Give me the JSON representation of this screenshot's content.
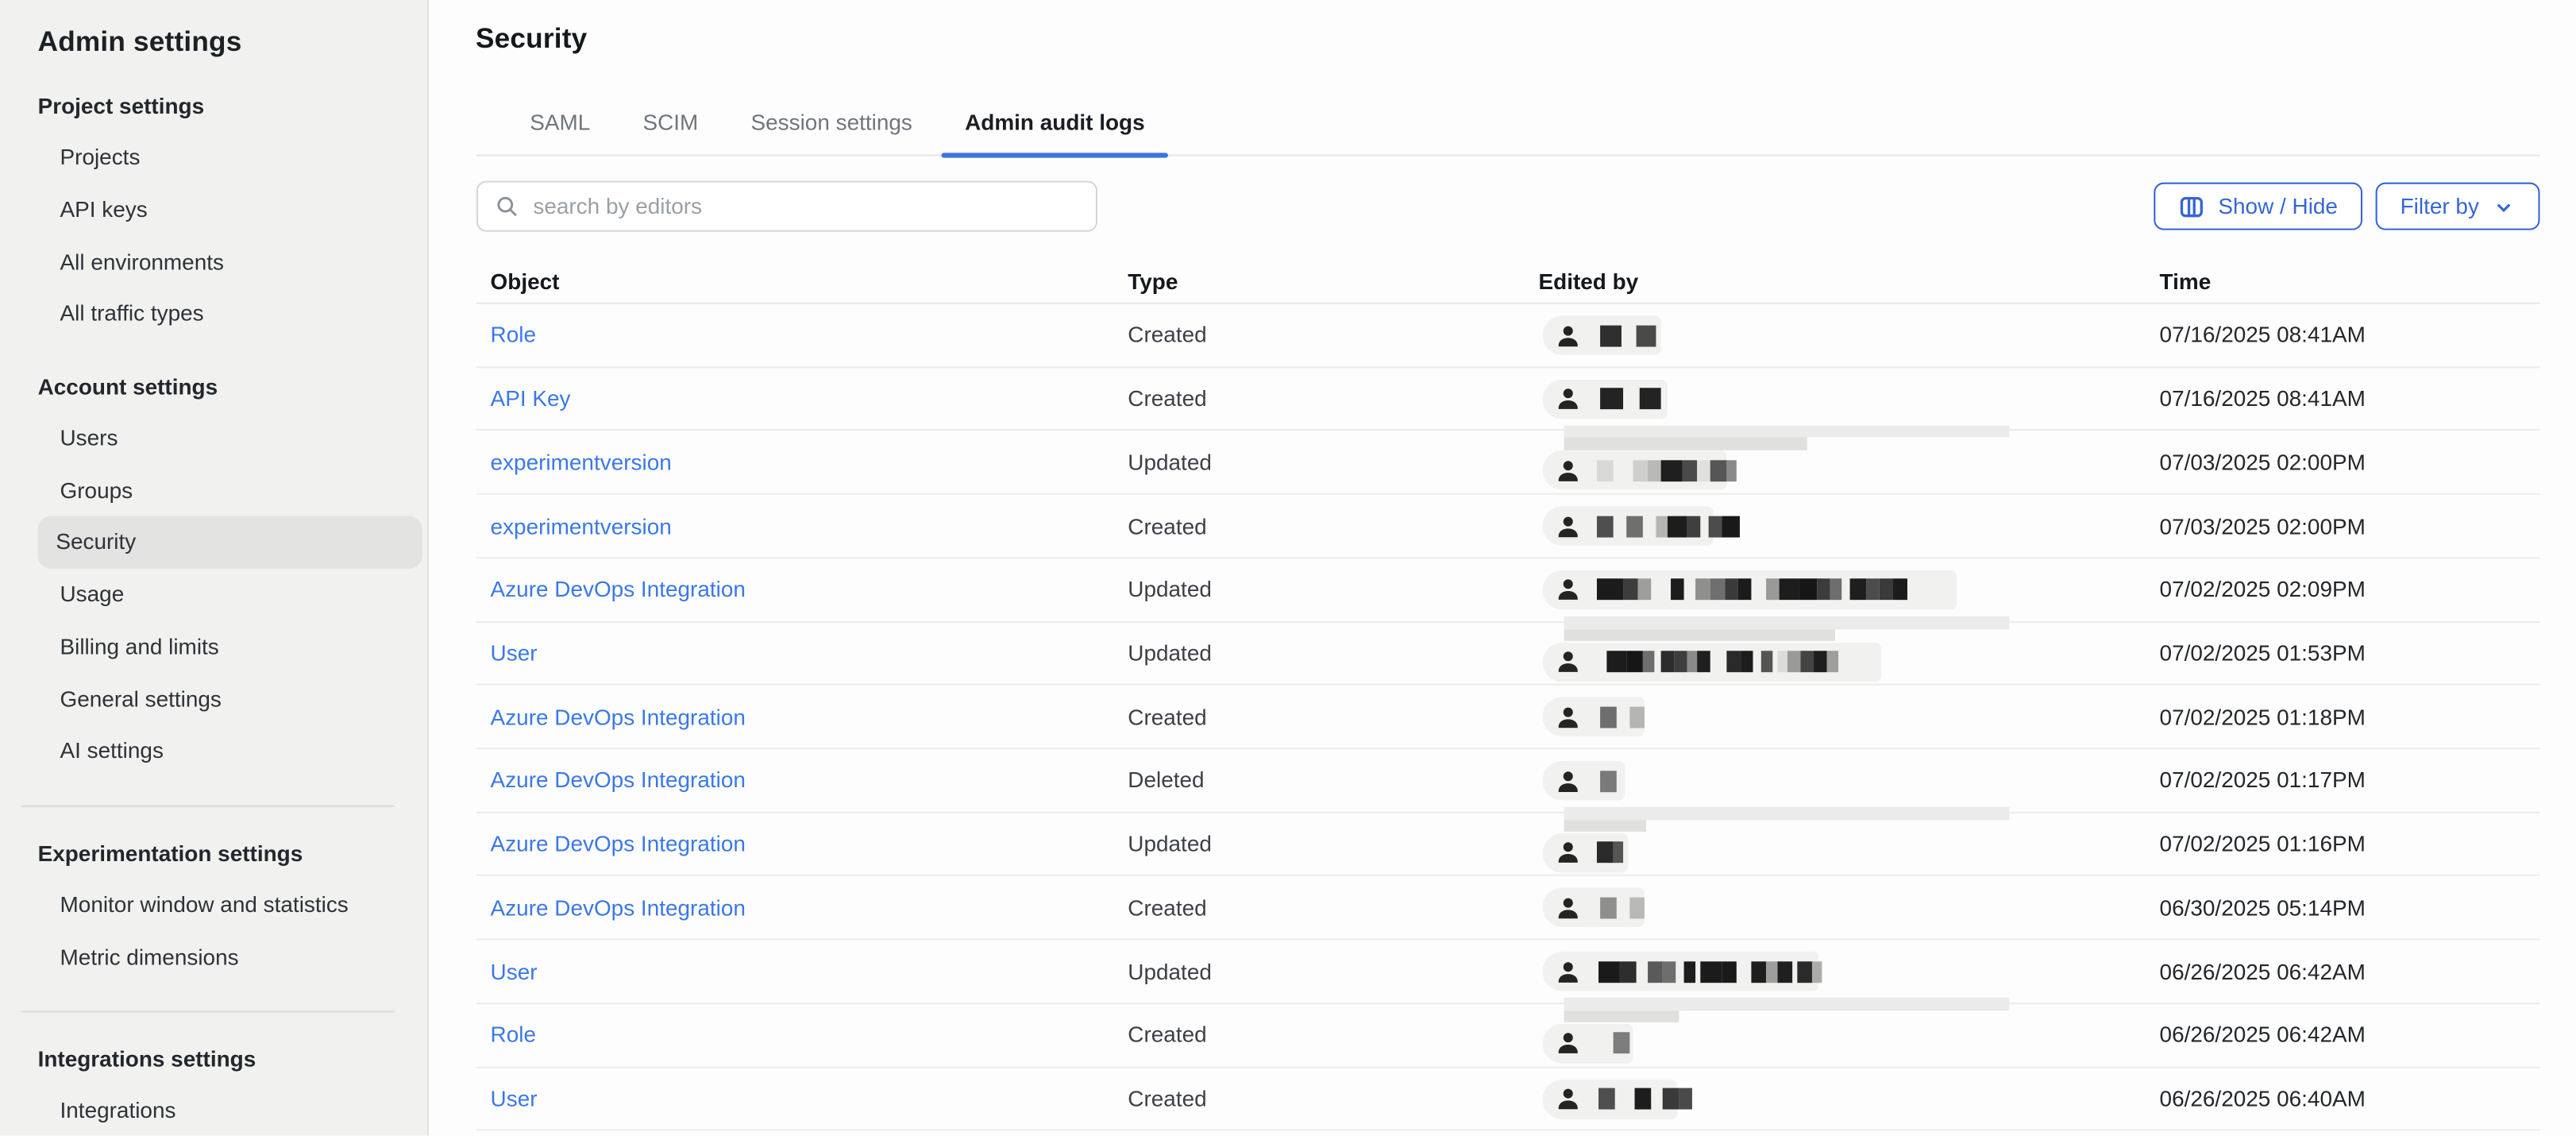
{
  "colors": {
    "accent": "#3566d6",
    "link": "#3b78e8",
    "tab_underline": "#3d72de",
    "sidebar_bg": "#f1f1ef",
    "sidebar_selected": "#e3e3e1",
    "main_bg": "#fdfdfd"
  },
  "sidebar": {
    "title": "Admin settings",
    "sections": [
      {
        "heading": "Project settings",
        "divider_above": false,
        "items": [
          {
            "label": "Projects"
          },
          {
            "label": "API keys"
          },
          {
            "label": "All environments"
          },
          {
            "label": "All traffic types"
          }
        ]
      },
      {
        "heading": "Account settings",
        "divider_above": false,
        "items": [
          {
            "label": "Users"
          },
          {
            "label": "Groups"
          },
          {
            "label": "Security",
            "selected": true
          },
          {
            "label": "Usage"
          },
          {
            "label": "Billing and limits"
          },
          {
            "label": "General settings"
          },
          {
            "label": "AI settings"
          }
        ]
      },
      {
        "heading": "Experimentation settings",
        "divider_above": true,
        "items": [
          {
            "label": "Monitor window and statistics"
          },
          {
            "label": "Metric dimensions"
          }
        ]
      },
      {
        "heading": "Integrations settings",
        "divider_above": true,
        "items": [
          {
            "label": "Integrations"
          }
        ]
      }
    ]
  },
  "main": {
    "title": "Security",
    "tabs": [
      {
        "label": "SAML",
        "active": false
      },
      {
        "label": "SCIM",
        "active": false
      },
      {
        "label": "Session settings",
        "active": false
      },
      {
        "label": "Admin audit logs",
        "active": true
      }
    ],
    "search": {
      "placeholder": "search by editors",
      "icon": "search-icon"
    },
    "toolbar": {
      "show_hide_label": "Show / Hide",
      "show_hide_icon": "columns-icon",
      "filter_by_label": "Filter by",
      "filter_by_icon": "chevron-down-icon"
    },
    "table": {
      "columns": [
        "Object",
        "Type",
        "Edited by",
        "Time"
      ],
      "editor_icon": "person-icon",
      "rows": [
        {
          "object": "Role",
          "type": "Created",
          "time": "07/16/2025 08:41AM",
          "redaction": {
            "band_above": false,
            "pill_width": 72,
            "blocks": [
              [
                5,
                ""
              ],
              [
                13,
                "#2f2f2f"
              ],
              [
                9,
                ""
              ],
              [
                12,
                "#4a4a4a"
              ]
            ]
          }
        },
        {
          "object": "API Key",
          "type": "Created",
          "time": "07/16/2025 08:41AM",
          "redaction": {
            "band_above": false,
            "pill_width": 76,
            "blocks": [
              [
                5,
                ""
              ],
              [
                14,
                "#232323"
              ],
              [
                10,
                ""
              ],
              [
                13,
                "#232323"
              ]
            ]
          }
        },
        {
          "object": "experimentversion",
          "type": "Updated",
          "time": "07/03/2025 02:00PM",
          "redaction": {
            "band_above": true,
            "band2_width": 148,
            "pill_width": 112,
            "blocks": [
              [
                3,
                ""
              ],
              [
                10,
                "#d9d9d7"
              ],
              [
                12,
                ""
              ],
              [
                9,
                "#cfcfcd"
              ],
              [
                8,
                "#b9b9b7"
              ],
              [
                13,
                "#1f1f1f"
              ],
              [
                9,
                "#4a4a4a"
              ],
              [
                8,
                "#e0e0de"
              ],
              [
                10,
                "#565656"
              ],
              [
                6,
                "#8a8a8a"
              ]
            ]
          }
        },
        {
          "object": "experimentversion",
          "type": "Created",
          "time": "07/03/2025 02:00PM",
          "redaction": {
            "band_above": false,
            "pill_width": 104,
            "blocks": [
              [
                3,
                ""
              ],
              [
                10,
                "#4f4f4f"
              ],
              [
                8,
                ""
              ],
              [
                10,
                "#6f6f6f"
              ],
              [
                8,
                ""
              ],
              [
                7,
                "#b5b5b3"
              ],
              [
                12,
                "#1d1d1d"
              ],
              [
                8,
                "#3f3f3f"
              ],
              [
                5,
                ""
              ],
              [
                8,
                "#4c4c4c"
              ],
              [
                11,
                "#191919"
              ]
            ]
          }
        },
        {
          "object": "Azure DevOps Integration",
          "type": "Updated",
          "time": "07/02/2025 02:09PM",
          "redaction": {
            "band_above": false,
            "pill_width": 252,
            "blocks": [
              [
                3,
                ""
              ],
              [
                16,
                "#1b1b1b"
              ],
              [
                9,
                "#3d3d3d"
              ],
              [
                8,
                "#9e9e9c"
              ],
              [
                12,
                ""
              ],
              [
                8,
                "#1d1d1d"
              ],
              [
                7,
                ""
              ],
              [
                9,
                "#8f8f8d"
              ],
              [
                9,
                "#6f6f6f"
              ],
              [
                8,
                "#3a3a3a"
              ],
              [
                8,
                "#1b1b1b"
              ],
              [
                9,
                ""
              ],
              [
                8,
                "#9a9a98"
              ],
              [
                12,
                "#1d1d1d"
              ],
              [
                11,
                "#161616"
              ],
              [
                8,
                "#3c3c3c"
              ],
              [
                7,
                "#6e6e6e"
              ],
              [
                5,
                ""
              ],
              [
                10,
                "#1e1e1e"
              ],
              [
                8,
                "#4c4c4c"
              ],
              [
                8,
                "#3a3a3a"
              ],
              [
                9,
                "#1c1c1c"
              ]
            ]
          }
        },
        {
          "object": "User",
          "type": "Updated",
          "time": "07/02/2025 01:53PM",
          "redaction": {
            "band_above": true,
            "band2_width": 165,
            "pill_width": 206,
            "blocks": [
              [
                9,
                ""
              ],
              [
                12,
                "#1c1c1c"
              ],
              [
                10,
                "#161616"
              ],
              [
                7,
                "#6e6e6e"
              ],
              [
                4,
                ""
              ],
              [
                8,
                "#2d2d2d"
              ],
              [
                8,
                "#3e3e3e"
              ],
              [
                6,
                "#8a8a88"
              ],
              [
                8,
                "#1f1f1f"
              ],
              [
                10,
                ""
              ],
              [
                9,
                "#2a2a2a"
              ],
              [
                7,
                "#1c1c1c"
              ],
              [
                5,
                ""
              ],
              [
                7,
                "#555553"
              ],
              [
                3,
                ""
              ],
              [
                6,
                "#dcdcda"
              ],
              [
                8,
                "#9a9a98"
              ],
              [
                8,
                "#444442"
              ],
              [
                8,
                "#1e1e1e"
              ],
              [
                7,
                "#9e9e9c"
              ]
            ]
          }
        },
        {
          "object": "Azure DevOps Integration",
          "type": "Created",
          "time": "07/02/2025 01:18PM",
          "redaction": {
            "band_above": false,
            "pill_width": 62,
            "blocks": [
              [
                5,
                ""
              ],
              [
                10,
                "#6e6e6e"
              ],
              [
                8,
                ""
              ],
              [
                9,
                "#b5b5b3"
              ]
            ]
          }
        },
        {
          "object": "Azure DevOps Integration",
          "type": "Deleted",
          "time": "07/02/2025 01:17PM",
          "redaction": {
            "band_above": false,
            "pill_width": 50,
            "blocks": [
              [
                5,
                ""
              ],
              [
                10,
                "#7a7a7a"
              ]
            ]
          }
        },
        {
          "object": "Azure DevOps Integration",
          "type": "Updated",
          "time": "07/02/2025 01:16PM",
          "redaction": {
            "band_above": true,
            "band2_width": 50,
            "pill_width": 52,
            "blocks": [
              [
                3,
                ""
              ],
              [
                10,
                "#2a2a2a"
              ],
              [
                6,
                "#555553"
              ]
            ]
          }
        },
        {
          "object": "Azure DevOps Integration",
          "type": "Created",
          "time": "06/30/2025 05:14PM",
          "redaction": {
            "band_above": false,
            "pill_width": 62,
            "blocks": [
              [
                5,
                ""
              ],
              [
                10,
                "#8f8f8d"
              ],
              [
                8,
                ""
              ],
              [
                9,
                "#b9b9b7"
              ]
            ]
          }
        },
        {
          "object": "User",
          "type": "Updated",
          "time": "06/26/2025 06:42AM",
          "redaction": {
            "band_above": false,
            "pill_width": 168,
            "blocks": [
              [
                4,
                ""
              ],
              [
                13,
                "#1a1a1a"
              ],
              [
                10,
                "#2e2e2e"
              ],
              [
                7,
                ""
              ],
              [
                9,
                "#5a5a5a"
              ],
              [
                8,
                "#6e6e6e"
              ],
              [
                5,
                ""
              ],
              [
                7,
                "#1d1d1d"
              ],
              [
                3,
                ""
              ],
              [
                13,
                "#1b1b1b"
              ],
              [
                9,
                "#191919"
              ],
              [
                9,
                ""
              ],
              [
                9,
                "#1e1e1e"
              ],
              [
                7,
                "#9e9e9c"
              ],
              [
                9,
                "#1f1f1f"
              ],
              [
                3,
                ""
              ],
              [
                9,
                "#2b2b2b"
              ],
              [
                6,
                "#adadab"
              ]
            ]
          }
        },
        {
          "object": "Role",
          "type": "Created",
          "time": "06/26/2025 06:42AM",
          "redaction": {
            "band_above": true,
            "band2_width": 70,
            "pill_width": 55,
            "blocks": [
              [
                13,
                ""
              ],
              [
                10,
                "#7d7d7d"
              ]
            ]
          }
        },
        {
          "object": "User",
          "type": "Created",
          "time": "06/26/2025 06:40AM",
          "redaction": {
            "band_above": false,
            "pill_width": 82,
            "blocks": [
              [
                4,
                ""
              ],
              [
                10,
                "#4f4f4f"
              ],
              [
                12,
                ""
              ],
              [
                10,
                "#1d1d1d"
              ],
              [
                7,
                ""
              ],
              [
                10,
                "#3a3a3a"
              ],
              [
                8,
                "#4a4a4a"
              ]
            ]
          }
        }
      ]
    }
  }
}
